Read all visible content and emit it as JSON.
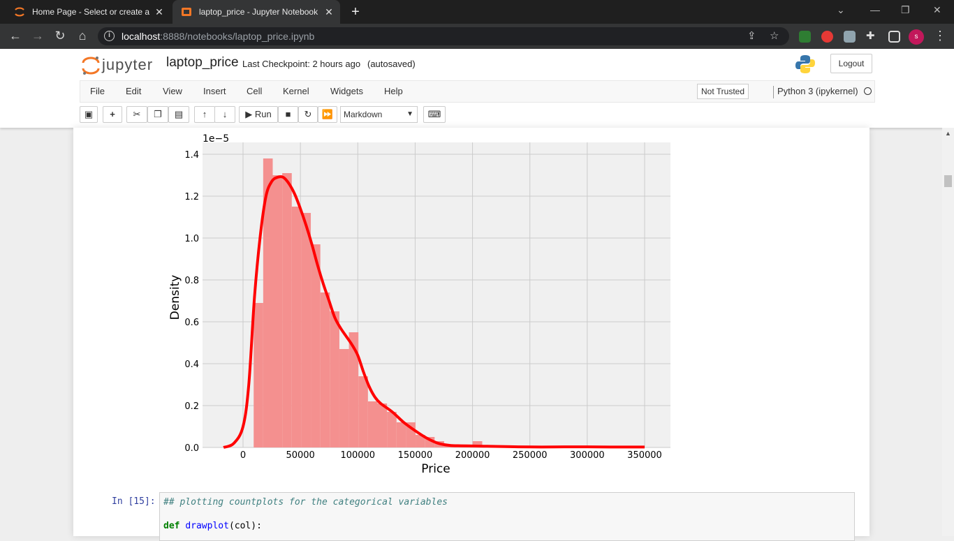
{
  "browser": {
    "tabs": [
      {
        "title": "Home Page - Select or create a n",
        "favicon": "jupyter-favicon-icon"
      },
      {
        "title": "laptop_price - Jupyter Notebook",
        "favicon": "jupyter-notebook-favicon-icon"
      }
    ],
    "url_host": "localhost",
    "url_path": ":8888/notebooks/laptop_price.ipynb",
    "profile_initial": "s"
  },
  "header": {
    "logo_text": "jupyter",
    "notebook_name": "laptop_price",
    "checkpoint": "Last Checkpoint: 2 hours ago",
    "autosave": "(autosaved)",
    "logout_label": "Logout"
  },
  "menubar": {
    "items": [
      "File",
      "Edit",
      "View",
      "Insert",
      "Cell",
      "Kernel",
      "Widgets",
      "Help"
    ],
    "trust": "Not Trusted",
    "kernel": "Python 3 (ipykernel)"
  },
  "toolbar": {
    "run_label": "Run",
    "cell_type": "Markdown"
  },
  "chart_data": {
    "type": "bar",
    "xlabel": "Price",
    "ylabel": "Density",
    "y_offset_label": "1e−5",
    "xticks": [
      0,
      50000,
      100000,
      150000,
      200000,
      250000,
      300000,
      350000
    ],
    "yticks": [
      0.0,
      0.2,
      0.4,
      0.6,
      0.8,
      1.0,
      1.2,
      1.4
    ],
    "xlim": [
      -30000,
      370000
    ],
    "ylim": [
      0,
      1.45
    ],
    "grid": true,
    "bar_color": "#f4908f",
    "line_color": "#ff0000",
    "histogram": {
      "bin_edges": [
        9270,
        17570,
        25870,
        34170,
        42470,
        50770,
        59070,
        67370,
        75670,
        83970,
        92270,
        100570,
        108870,
        117170,
        125470,
        133770,
        142070,
        150370,
        158670,
        166970,
        175270,
        183570,
        191870,
        200170,
        208470,
        216770,
        225070,
        233370,
        241670,
        249970,
        258270,
        266570,
        274870,
        283170,
        291470,
        299770,
        308070,
        316370,
        324670,
        332970,
        341270
      ],
      "density": [
        0.69,
        1.38,
        1.3,
        1.31,
        1.15,
        1.12,
        0.97,
        0.74,
        0.65,
        0.47,
        0.55,
        0.34,
        0.22,
        0.21,
        0.17,
        0.12,
        0.12,
        0.06,
        0.05,
        0.03,
        0.01,
        0.01,
        0.01,
        0.03,
        0.01,
        0.005,
        0.003,
        0.003,
        0.003,
        0.003,
        0.002,
        0.002,
        0.002,
        0.002,
        0.003,
        0.002,
        0.001,
        0.001,
        0.002,
        0.001
      ]
    },
    "kde": {
      "x": [
        -17000,
        -8000,
        0,
        5000,
        10000,
        15000,
        20000,
        25000,
        30000,
        35000,
        40000,
        45000,
        50000,
        55000,
        60000,
        65000,
        70000,
        75000,
        80000,
        85000,
        90000,
        95000,
        100000,
        105000,
        110000,
        115000,
        120000,
        130000,
        140000,
        150000,
        160000,
        170000,
        180000,
        190000,
        200000,
        210000,
        220000,
        240000,
        260000,
        280000,
        300000,
        320000,
        340000,
        350000
      ],
      "y": [
        0.0,
        0.02,
        0.1,
        0.3,
        0.72,
        1.01,
        1.2,
        1.27,
        1.29,
        1.29,
        1.26,
        1.21,
        1.14,
        1.06,
        0.97,
        0.87,
        0.78,
        0.7,
        0.62,
        0.57,
        0.53,
        0.49,
        0.44,
        0.36,
        0.29,
        0.24,
        0.21,
        0.17,
        0.12,
        0.08,
        0.045,
        0.02,
        0.01,
        0.008,
        0.007,
        0.006,
        0.005,
        0.003,
        0.002,
        0.003,
        0.003,
        0.002,
        0.002,
        0.002
      ]
    }
  },
  "next_cell": {
    "prompt": "In [15]:",
    "comment": "## plotting countplots for the categorical variables",
    "code_def": "def",
    "code_fn": "drawplot",
    "code_args": "(col):"
  }
}
